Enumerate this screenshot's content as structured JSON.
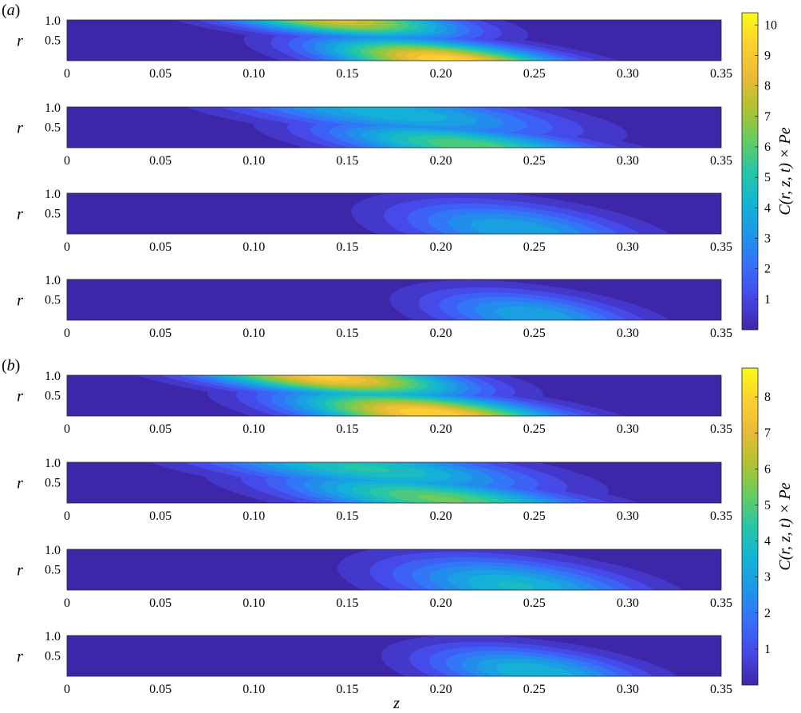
{
  "figure": {
    "xlabel": "z",
    "ylabel": "r",
    "colorbar_label": "C(r, z, t) × Pe"
  },
  "chart_data": [
    {
      "type": "heatmap",
      "panel": "a",
      "panel_label": "a",
      "xlabel": "z",
      "ylabel": "r",
      "xlim": [
        0,
        0.35
      ],
      "ylim": [
        0,
        1.0
      ],
      "xticks": [
        "0",
        "0.05",
        "0.10",
        "0.15",
        "0.20",
        "0.25",
        "0.30",
        "0.35"
      ],
      "yticks": [
        "0.5",
        "1.0"
      ],
      "colorbar": {
        "label": "C(r, z, t) × Pe",
        "range": [
          0,
          10.4
        ],
        "ticks": [
          "1",
          "2",
          "3",
          "4",
          "5",
          "6",
          "7",
          "8",
          "9",
          "10"
        ]
      },
      "subplots": [
        {
          "blobs": [
            {
              "zc": 0.145,
              "rc": 1.0,
              "wz": 0.038,
              "wr": 0.32,
              "amp": 8.3,
              "tilt": -0.07
            },
            {
              "zc": 0.205,
              "rc": 0.0,
              "wz": 0.038,
              "wr": 0.38,
              "amp": 9.9,
              "tilt": -0.07
            }
          ]
        },
        {
          "blobs": [
            {
              "zc": 0.175,
              "rc": 0.85,
              "wz": 0.05,
              "wr": 0.45,
              "amp": 4.5,
              "tilt": -0.08
            },
            {
              "zc": 0.215,
              "rc": 0.05,
              "wz": 0.042,
              "wr": 0.4,
              "amp": 6.3,
              "tilt": -0.08
            }
          ]
        },
        {
          "blobs": [
            {
              "zc": 0.24,
              "rc": 0.1,
              "wz": 0.04,
              "wr": 0.5,
              "amp": 4.0,
              "tilt": -0.04
            }
          ]
        },
        {
          "blobs": [
            {
              "zc": 0.25,
              "rc": 0.1,
              "wz": 0.035,
              "wr": 0.45,
              "amp": 4.0,
              "tilt": -0.04
            }
          ]
        }
      ]
    },
    {
      "type": "heatmap",
      "panel": "b",
      "panel_label": "b",
      "xlabel": "z",
      "ylabel": "r",
      "xlim": [
        0,
        0.35
      ],
      "ylim": [
        0,
        1.0
      ],
      "xticks": [
        "0",
        "0.05",
        "0.10",
        "0.15",
        "0.20",
        "0.25",
        "0.30",
        "0.35"
      ],
      "yticks": [
        "0.5",
        "1.0"
      ],
      "colorbar": {
        "label": "C(r, z, t) × Pe",
        "range": [
          0,
          8.8
        ],
        "ticks": [
          "1",
          "2",
          "3",
          "4",
          "5",
          "6",
          "7",
          "8"
        ]
      },
      "subplots": [
        {
          "blobs": [
            {
              "zc": 0.14,
              "rc": 0.95,
              "wz": 0.042,
              "wr": 0.35,
              "amp": 8.0,
              "tilt": -0.07
            },
            {
              "zc": 0.195,
              "rc": 0.05,
              "wz": 0.042,
              "wr": 0.4,
              "amp": 8.3,
              "tilt": -0.07
            }
          ]
        },
        {
          "blobs": [
            {
              "zc": 0.16,
              "rc": 0.85,
              "wz": 0.05,
              "wr": 0.45,
              "amp": 4.5,
              "tilt": -0.08
            },
            {
              "zc": 0.2,
              "rc": 0.1,
              "wz": 0.045,
              "wr": 0.45,
              "amp": 5.5,
              "tilt": -0.08
            }
          ]
        },
        {
          "blobs": [
            {
              "zc": 0.24,
              "rc": 0.1,
              "wz": 0.042,
              "wr": 0.5,
              "amp": 4.0,
              "tilt": -0.04
            }
          ]
        },
        {
          "blobs": [
            {
              "zc": 0.25,
              "rc": 0.1,
              "wz": 0.036,
              "wr": 0.45,
              "amp": 3.9,
              "tilt": -0.04
            }
          ]
        }
      ]
    }
  ]
}
